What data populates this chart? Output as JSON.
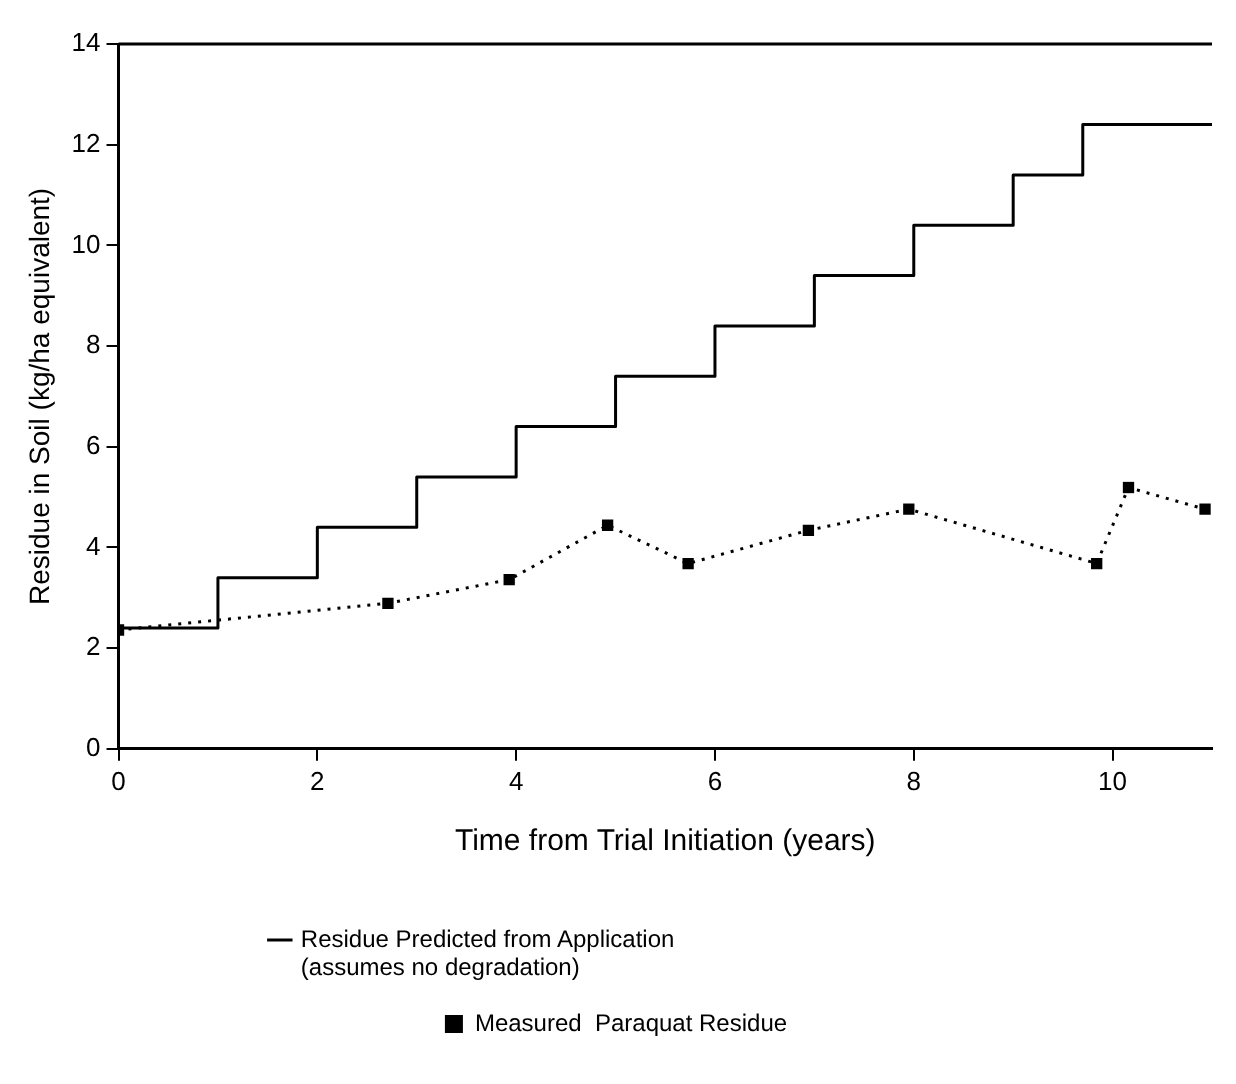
{
  "chart_data": {
    "type": "line",
    "xlabel": "Time from Trial Initiation (years)",
    "ylabel": "Residue in Soil (kg/ha equivalent)",
    "xlim": [
      0,
      11
    ],
    "xticks": [
      0,
      2,
      4,
      6,
      8,
      10
    ],
    "ylim": [
      0,
      14
    ],
    "yticks": [
      0,
      2,
      4,
      6,
      8,
      10,
      12,
      14
    ],
    "grid": false,
    "legend": "bottom",
    "series": [
      {
        "name": "Residue Predicted from Application\n(assumes no degradation)",
        "type": "step",
        "color": "#000000",
        "marker": "none",
        "line_style": "solid",
        "x": [
          0,
          1,
          2,
          3,
          4,
          5,
          6,
          7,
          8,
          9,
          9.7,
          11
        ],
        "values": [
          2.4,
          3.4,
          4.4,
          5.4,
          6.4,
          7.4,
          8.4,
          9.4,
          10.4,
          11.4,
          12.4,
          12.4
        ]
      },
      {
        "name": "Measured  Paraquat Residue",
        "type": "line",
        "color": "#000000",
        "marker": "square",
        "line_style": "dotted",
        "x": [
          0,
          2.71,
          3.93,
          4.92,
          5.73,
          6.94,
          7.95,
          9.84,
          10.16,
          10.93
        ],
        "values": [
          2.36,
          2.89,
          3.36,
          4.44,
          3.68,
          4.34,
          4.76,
          3.68,
          5.19,
          4.76
        ]
      }
    ]
  }
}
